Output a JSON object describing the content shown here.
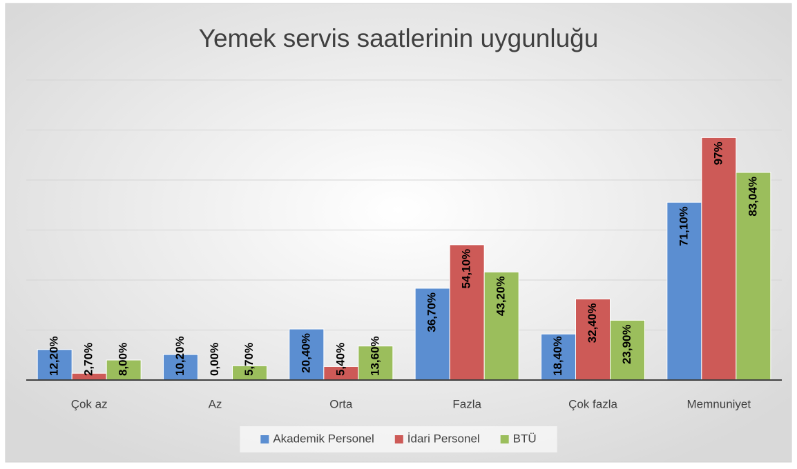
{
  "chart_data": {
    "type": "bar",
    "title": "Yemek servis saatlerinin uygunluğu",
    "categories": [
      "Çok az",
      "Az",
      "Orta",
      "Fazla",
      "Çok fazla",
      "Memnuniyet"
    ],
    "series": [
      {
        "name": "Akademik Personel",
        "color": "#5b8ed1",
        "values": [
          12.2,
          10.2,
          20.4,
          36.7,
          18.4,
          71.1
        ],
        "value_labels": [
          "12,20%",
          "10,20%",
          "20,40%",
          "36,70%",
          "18,40%",
          "71,10%"
        ]
      },
      {
        "name": "İdari Personel",
        "color": "#cd5a57",
        "values": [
          2.7,
          0,
          5.4,
          54.1,
          32.4,
          97
        ],
        "value_labels": [
          "2,70%",
          "0,00%",
          "5,40%",
          "54,10%",
          "32,40%",
          "97%"
        ]
      },
      {
        "name": "BTÜ",
        "color": "#9bbe5c",
        "values": [
          8,
          5.7,
          13.6,
          43.2,
          23.9,
          83.04
        ],
        "value_labels": [
          "8,00%",
          "5,70%",
          "13,60%",
          "43,20%",
          "23,90%",
          "83,04%"
        ]
      }
    ],
    "ylim": [
      0,
      120
    ],
    "yticks": [
      0,
      20,
      40,
      60,
      80,
      100,
      120
    ],
    "grid": true,
    "legend": "bottom"
  }
}
